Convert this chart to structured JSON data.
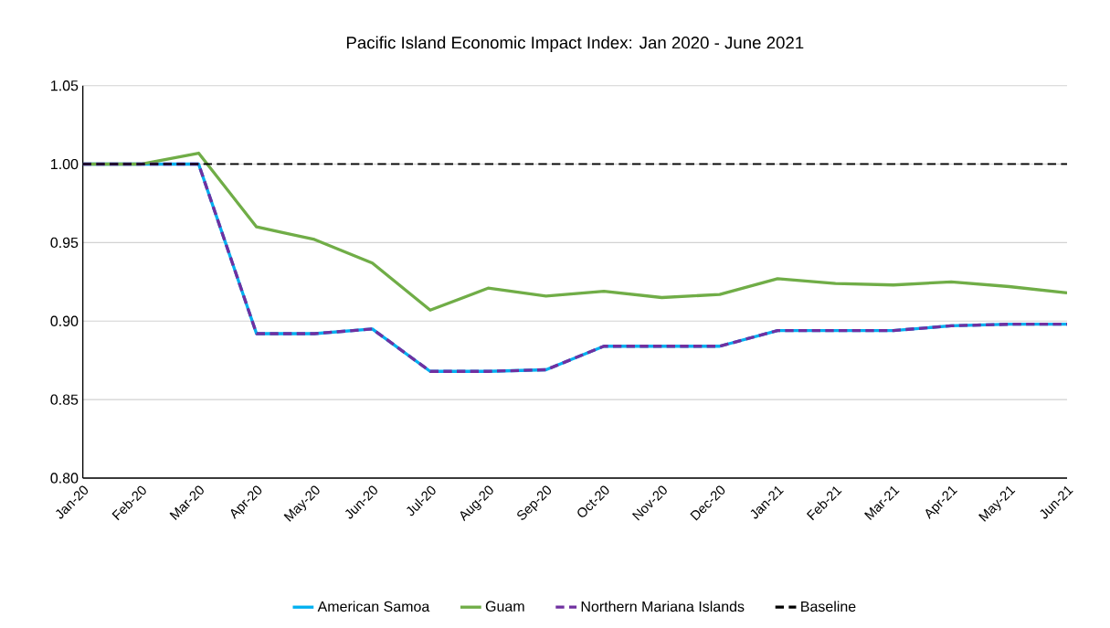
{
  "chart_data": {
    "type": "line",
    "title": "Pacific Island Economic Impact Index: Jan 2020 - June 2021",
    "categories": [
      "Jan-20",
      "Feb-20",
      "Mar-20",
      "Apr-20",
      "May-20",
      "Jun-20",
      "Jul-20",
      "Aug-20",
      "Sep-20",
      "Oct-20",
      "Nov-20",
      "Dec-20",
      "Jan-21",
      "Feb-21",
      "Mar-21",
      "Apr-21",
      "May-21",
      "Jun-21"
    ],
    "series": [
      {
        "name": "American Samoa",
        "color": "#00b0f0",
        "line_style": "solid",
        "values": [
          1.0,
          1.0,
          1.0,
          0.892,
          0.892,
          0.895,
          0.868,
          0.868,
          0.869,
          0.884,
          0.884,
          0.884,
          0.894,
          0.894,
          0.894,
          0.897,
          0.898,
          0.898
        ]
      },
      {
        "name": "Guam",
        "color": "#70ad47",
        "line_style": "solid",
        "values": [
          1.0,
          1.0,
          1.007,
          0.96,
          0.952,
          0.937,
          0.907,
          0.921,
          0.916,
          0.919,
          0.915,
          0.917,
          0.927,
          0.924,
          0.923,
          0.925,
          0.922,
          0.918
        ]
      },
      {
        "name": "Northern Mariana Islands",
        "color": "#7030a0",
        "line_style": "dashed",
        "values": [
          1.0,
          1.0,
          1.0,
          0.892,
          0.892,
          0.895,
          0.868,
          0.868,
          0.869,
          0.884,
          0.884,
          0.884,
          0.894,
          0.894,
          0.894,
          0.897,
          0.898,
          0.898
        ]
      }
    ],
    "ref_lines": [
      {
        "axis": "y",
        "value": 1.0,
        "label": "Baseline",
        "color": "#000000",
        "line_style": "dashed"
      }
    ],
    "ylim": [
      0.8,
      1.05
    ],
    "yticks": [
      {
        "value": 0.8,
        "label": "0.80"
      },
      {
        "value": 0.85,
        "label": "0.85"
      },
      {
        "value": 0.9,
        "label": "0.90"
      },
      {
        "value": 0.95,
        "label": "0.95"
      },
      {
        "value": 1.0,
        "label": "1.00"
      },
      {
        "value": 1.05,
        "label": "1.05"
      }
    ],
    "grid": "y",
    "legend": "bottom"
  }
}
